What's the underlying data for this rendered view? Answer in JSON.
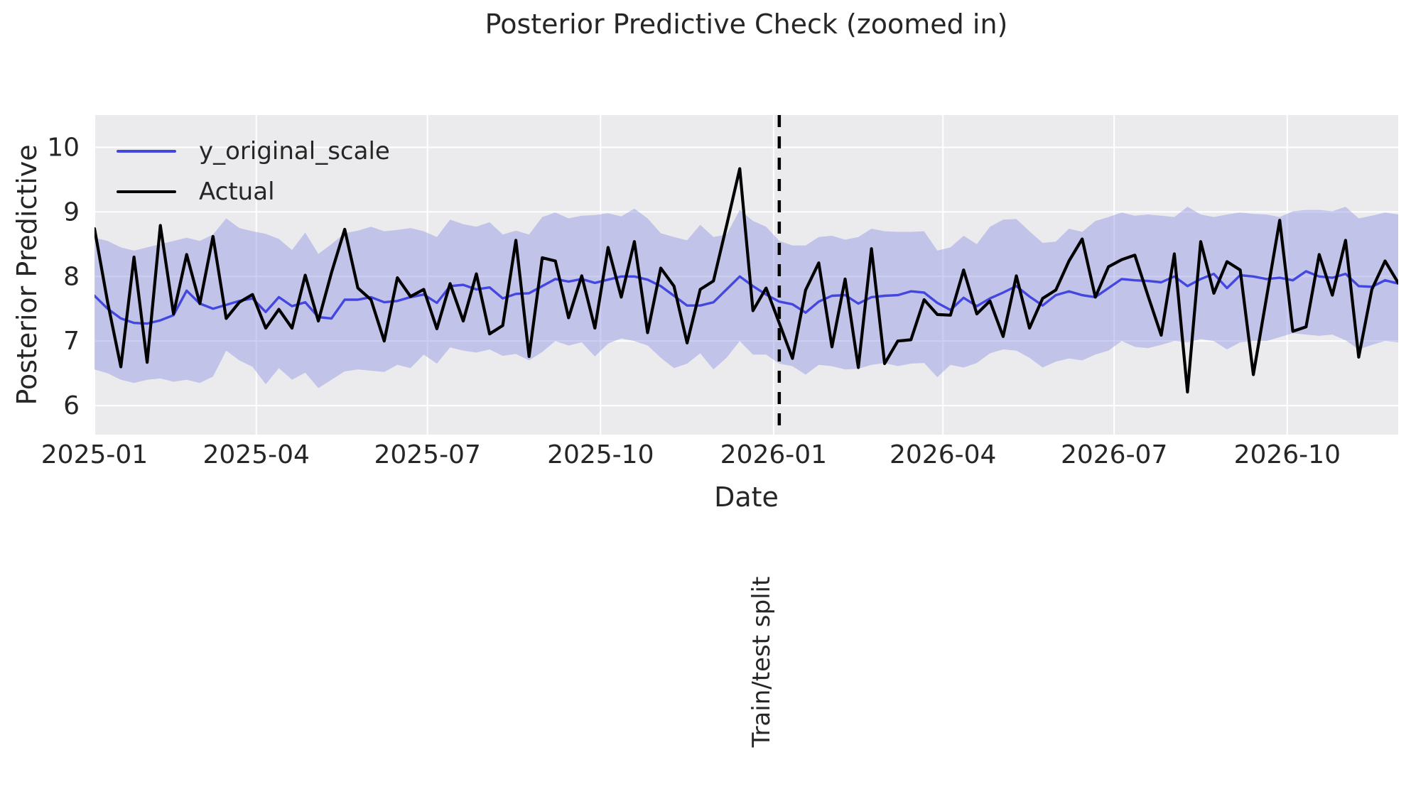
{
  "figure": {
    "background": "#ffffff",
    "plot_background": "#ebebee",
    "grid_color": "#ffffff",
    "text_color": "#262626"
  },
  "chart_data": {
    "type": "line",
    "title": "Posterior Predictive Check (zoomed in)",
    "xlabel": "Date",
    "ylabel": "Posterior Predictive",
    "grid": true,
    "legend_position": "upper left",
    "x_start_date": "2025-01-05",
    "x_step_days": 7,
    "n_points": 100,
    "ylim": [
      5.55,
      10.5
    ],
    "y_ticks": [
      6,
      7,
      8,
      9,
      10
    ],
    "x_ticks": [
      {
        "label": "2025-01",
        "date": "2025-01-01"
      },
      {
        "label": "2025-04",
        "date": "2025-04-01"
      },
      {
        "label": "2025-07",
        "date": "2025-07-01"
      },
      {
        "label": "2025-10",
        "date": "2025-10-01"
      },
      {
        "label": "2026-01",
        "date": "2026-01-01"
      },
      {
        "label": "2026-04",
        "date": "2026-04-01"
      },
      {
        "label": "2026-07",
        "date": "2026-07-01"
      },
      {
        "label": "2026-10",
        "date": "2026-10-01"
      }
    ],
    "split": {
      "label": "Train/test split",
      "date": "2026-01-04",
      "line_style": "dashed",
      "color": "#000000"
    },
    "band": {
      "color": "rgba(135,140,224,0.42)",
      "upper": [
        8.6,
        8.55,
        8.45,
        8.4,
        8.45,
        8.5,
        8.55,
        8.6,
        8.55,
        8.65,
        8.9,
        8.75,
        8.7,
        8.66,
        8.58,
        8.41,
        8.68,
        8.35,
        8.5,
        8.67,
        8.71,
        8.77,
        8.7,
        8.72,
        8.75,
        8.7,
        8.61,
        8.88,
        8.81,
        8.77,
        8.84,
        8.65,
        8.71,
        8.65,
        8.92,
        8.99,
        8.9,
        8.94,
        8.95,
        8.98,
        8.93,
        9.05,
        8.9,
        8.67,
        8.61,
        8.56,
        8.8,
        8.61,
        8.65,
        9.03,
        8.86,
        8.77,
        8.55,
        8.48,
        8.48,
        8.61,
        8.63,
        8.57,
        8.61,
        8.74,
        8.7,
        8.69,
        8.69,
        8.7,
        8.4,
        8.45,
        8.63,
        8.5,
        8.77,
        8.88,
        8.89,
        8.7,
        8.52,
        8.54,
        8.74,
        8.69,
        8.86,
        8.92,
        8.99,
        8.94,
        8.96,
        8.94,
        8.92,
        9.08,
        8.96,
        8.92,
        8.96,
        8.99,
        8.97,
        8.96,
        8.92,
        9.01,
        9.03,
        9.03,
        9.01,
        9.08,
        8.9,
        8.94,
        8.99,
        8.96
      ],
      "lower": [
        6.56,
        6.5,
        6.4,
        6.35,
        6.4,
        6.42,
        6.37,
        6.4,
        6.35,
        6.45,
        6.85,
        6.7,
        6.6,
        6.33,
        6.58,
        6.4,
        6.51,
        6.27,
        6.4,
        6.53,
        6.56,
        6.54,
        6.52,
        6.63,
        6.58,
        6.79,
        6.65,
        6.9,
        6.85,
        6.82,
        6.87,
        6.77,
        6.8,
        6.7,
        6.83,
        7.0,
        6.93,
        6.98,
        6.76,
        6.96,
        7.04,
        7.0,
        6.93,
        6.74,
        6.58,
        6.65,
        6.81,
        6.56,
        6.74,
        7.0,
        6.79,
        6.79,
        6.65,
        6.61,
        6.48,
        6.63,
        6.61,
        6.56,
        6.57,
        6.63,
        6.66,
        6.61,
        6.65,
        6.66,
        6.44,
        6.63,
        6.59,
        6.66,
        6.81,
        6.87,
        6.85,
        6.74,
        6.59,
        6.68,
        6.73,
        6.7,
        6.79,
        6.85,
        7.0,
        6.91,
        6.89,
        6.94,
        7.0,
        6.98,
        7.03,
        7.0,
        6.87,
        6.98,
        7.0,
        7.0,
        7.06,
        7.12,
        7.1,
        7.08,
        7.1,
        7.01,
        6.87,
        6.94,
        7.0,
        6.98
      ]
    },
    "series": [
      {
        "name": "y_original_scale",
        "color": "#4347e0",
        "line_width": 3.4,
        "values": [
          7.7,
          7.5,
          7.35,
          7.28,
          7.27,
          7.32,
          7.4,
          7.78,
          7.58,
          7.5,
          7.56,
          7.62,
          7.66,
          7.45,
          7.68,
          7.54,
          7.6,
          7.37,
          7.35,
          7.64,
          7.64,
          7.68,
          7.6,
          7.62,
          7.68,
          7.72,
          7.59,
          7.85,
          7.87,
          7.8,
          7.83,
          7.66,
          7.73,
          7.74,
          7.85,
          7.96,
          7.92,
          7.96,
          7.9,
          7.95,
          8.0,
          8.0,
          7.95,
          7.85,
          7.7,
          7.55,
          7.55,
          7.6,
          7.8,
          8.0,
          7.85,
          7.72,
          7.61,
          7.57,
          7.44,
          7.61,
          7.7,
          7.71,
          7.58,
          7.68,
          7.7,
          7.71,
          7.77,
          7.75,
          7.59,
          7.48,
          7.67,
          7.54,
          7.66,
          7.75,
          7.85,
          7.69,
          7.55,
          7.71,
          7.77,
          7.71,
          7.68,
          7.82,
          7.96,
          7.94,
          7.93,
          7.91,
          8.0,
          7.85,
          7.96,
          8.04,
          7.82,
          8.02,
          8.0,
          7.96,
          7.98,
          7.94,
          8.08,
          8.0,
          7.98,
          8.04,
          7.85,
          7.84,
          7.94,
          7.89
        ]
      },
      {
        "name": "Actual",
        "color": "#000000",
        "line_width": 4.2,
        "values": [
          8.74,
          7.6,
          6.6,
          8.3,
          6.67,
          8.79,
          7.42,
          8.34,
          7.58,
          8.62,
          7.35,
          7.6,
          7.72,
          7.2,
          7.49,
          7.2,
          8.02,
          7.31,
          8.06,
          8.73,
          7.82,
          7.64,
          7.0,
          7.98,
          7.69,
          7.8,
          7.19,
          7.89,
          7.31,
          8.04,
          7.11,
          7.24,
          8.56,
          6.76,
          8.29,
          8.24,
          7.36,
          8.01,
          7.2,
          8.45,
          7.68,
          8.54,
          7.13,
          8.13,
          7.85,
          6.97,
          7.8,
          7.93,
          8.79,
          9.67,
          7.47,
          7.82,
          7.28,
          6.73,
          7.79,
          8.21,
          6.91,
          7.96,
          6.59,
          8.43,
          6.65,
          7.0,
          7.02,
          7.64,
          7.41,
          7.4,
          8.1,
          7.42,
          7.62,
          7.07,
          8.01,
          7.2,
          7.66,
          7.79,
          8.24,
          8.58,
          7.68,
          8.15,
          8.26,
          8.33,
          7.7,
          7.09,
          8.35,
          6.21,
          8.54,
          7.74,
          8.23,
          8.1,
          6.48,
          7.67,
          8.87,
          7.15,
          7.22,
          8.34,
          7.71,
          8.56,
          6.75,
          7.8,
          8.24,
          7.9
        ]
      }
    ]
  }
}
